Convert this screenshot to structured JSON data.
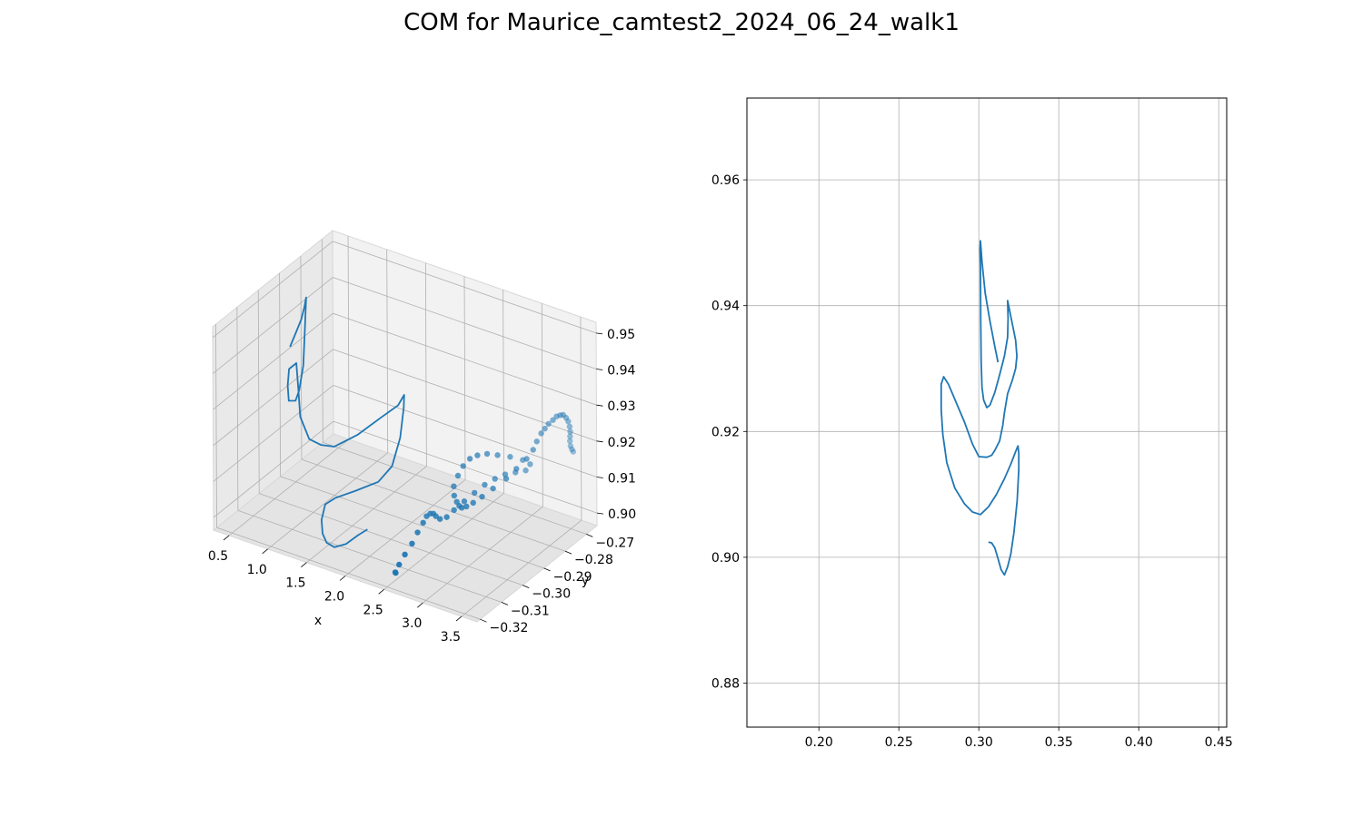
{
  "figure": {
    "title": "COM for Maurice_camtest2_2024_06_24_walk1"
  },
  "colors": {
    "series": "#1f77b4",
    "grid": "#b0b0b0",
    "pane": "#f2f2f2",
    "pane_side": "#e9e9e9",
    "pane_floor": "#e4e4e4"
  },
  "chart_data": [
    {
      "type": "line",
      "projection": "3d",
      "xlabel": "x",
      "ylabel": "y",
      "zlabel": "",
      "grid": true,
      "x_ticks": [
        "0.5",
        "1.0",
        "1.5",
        "2.0",
        "2.5",
        "3.0",
        "3.5"
      ],
      "y_ticks": [
        "−0.32",
        "−0.31",
        "−0.30",
        "−0.29",
        "−0.28",
        "−0.27"
      ],
      "z_ticks": [
        "0.90",
        "0.91",
        "0.92",
        "0.93",
        "0.94",
        "0.95"
      ],
      "series": [
        {
          "marker": "line",
          "points": [
            [
              0.35,
              -0.287,
              0.9315
            ],
            [
              0.45,
              -0.288,
              0.9365
            ],
            [
              0.55,
              -0.289,
              0.9415
            ],
            [
              0.62,
              -0.29,
              0.946
            ],
            [
              0.67,
              -0.291,
              0.9495
            ],
            [
              0.71,
              -0.293,
              0.943
            ],
            [
              0.74,
              -0.295,
              0.933
            ],
            [
              0.74,
              -0.297,
              0.927
            ],
            [
              0.72,
              -0.298,
              0.9245
            ],
            [
              0.66,
              -0.299,
              0.9245
            ],
            [
              0.62,
              -0.298,
              0.928
            ],
            [
              0.61,
              -0.297,
              0.932
            ],
            [
              0.65,
              -0.295,
              0.933
            ],
            [
              0.7,
              -0.296,
              0.927
            ],
            [
              0.78,
              -0.298,
              0.9205
            ],
            [
              0.95,
              -0.3,
              0.9165
            ],
            [
              1.1,
              -0.3,
              0.916
            ],
            [
              1.3,
              -0.301,
              0.9175
            ],
            [
              1.6,
              -0.301,
              0.923
            ],
            [
              1.9,
              -0.301,
              0.93
            ],
            [
              2.1,
              -0.3,
              0.9345
            ],
            [
              2.18,
              -0.3,
              0.938
            ],
            [
              2.2,
              -0.301,
              0.935
            ],
            [
              2.18,
              -0.302,
              0.927
            ],
            [
              2.1,
              -0.303,
              0.919
            ],
            [
              1.95,
              -0.304,
              0.914
            ],
            [
              1.7,
              -0.306,
              0.9105
            ],
            [
              1.5,
              -0.308,
              0.908
            ],
            [
              1.4,
              -0.309,
              0.906
            ],
            [
              1.38,
              -0.31,
              0.902
            ],
            [
              1.42,
              -0.311,
              0.899
            ],
            [
              1.5,
              -0.312,
              0.8975
            ],
            [
              1.6,
              -0.312,
              0.897
            ],
            [
              1.75,
              -0.312,
              0.899
            ],
            [
              1.9,
              -0.312,
              0.9025
            ],
            [
              2.0,
              -0.311,
              0.9045
            ]
          ]
        },
        {
          "marker": "scatter",
          "points": [
            [
              2.5,
              -0.316,
              0.8985
            ],
            [
              2.55,
              -0.318,
              0.9
            ],
            [
              2.6,
              -0.318,
              0.9025
            ],
            [
              2.62,
              -0.316,
              0.9045
            ],
            [
              2.63,
              -0.313,
              0.9062
            ],
            [
              2.62,
              -0.31,
              0.9078
            ],
            [
              2.61,
              -0.307,
              0.909
            ],
            [
              2.6,
              -0.305,
              0.9098
            ],
            [
              2.62,
              -0.304,
              0.9102
            ],
            [
              2.66,
              -0.304,
              0.9105
            ],
            [
              2.72,
              -0.305,
              0.9107
            ],
            [
              2.8,
              -0.306,
              0.911
            ],
            [
              2.86,
              -0.305,
              0.9115
            ],
            [
              2.9,
              -0.303,
              0.9128
            ],
            [
              2.95,
              -0.3,
              0.9142
            ],
            [
              3.0,
              -0.297,
              0.9155
            ],
            [
              3.05,
              -0.294,
              0.9167
            ],
            [
              3.1,
              -0.291,
              0.9173
            ],
            [
              3.15,
              -0.288,
              0.9175
            ],
            [
              3.2,
              -0.285,
              0.917
            ],
            [
              3.25,
              -0.282,
              0.9165
            ],
            [
              3.28,
              -0.281,
              0.918
            ],
            [
              3.24,
              -0.283,
              0.9198
            ],
            [
              3.16,
              -0.286,
              0.9215
            ],
            [
              3.08,
              -0.289,
              0.9228
            ],
            [
              3.0,
              -0.291,
              0.9235
            ],
            [
              2.93,
              -0.293,
              0.9235
            ],
            [
              2.86,
              -0.294,
              0.9225
            ],
            [
              2.8,
              -0.295,
              0.9205
            ],
            [
              2.76,
              -0.296,
              0.918
            ],
            [
              2.76,
              -0.298,
              0.916
            ],
            [
              2.82,
              -0.3,
              0.9148
            ],
            [
              2.88,
              -0.301,
              0.914
            ],
            [
              2.94,
              -0.302,
              0.9138
            ],
            [
              3.0,
              -0.303,
              0.9142
            ],
            [
              3.06,
              -0.303,
              0.915
            ],
            [
              3.12,
              -0.302,
              0.916
            ],
            [
              3.18,
              -0.3,
              0.9172
            ],
            [
              3.24,
              -0.297,
              0.9185
            ],
            [
              3.3,
              -0.293,
              0.9198
            ],
            [
              3.35,
              -0.29,
              0.9215
            ],
            [
              3.4,
              -0.287,
              0.9232
            ],
            [
              3.43,
              -0.285,
              0.925
            ],
            [
              3.45,
              -0.284,
              0.927
            ],
            [
              3.48,
              -0.283,
              0.929
            ],
            [
              3.5,
              -0.282,
              0.93
            ],
            [
              3.52,
              -0.281,
              0.931
            ],
            [
              3.55,
              -0.28,
              0.9318
            ],
            [
              3.57,
              -0.279,
              0.9325
            ],
            [
              3.59,
              -0.278,
              0.9325
            ],
            [
              3.6,
              -0.277,
              0.9322
            ],
            [
              3.61,
              -0.276,
              0.931
            ],
            [
              3.61,
              -0.275,
              0.9295
            ],
            [
              3.6,
              -0.274,
              0.9275
            ],
            [
              3.58,
              -0.273,
              0.9255
            ],
            [
              3.55,
              -0.272,
              0.9235
            ],
            [
              3.52,
              -0.271,
              0.9215
            ],
            [
              3.5,
              -0.27,
              0.9195
            ],
            [
              3.49,
              -0.269,
              0.918
            ],
            [
              3.48,
              -0.268,
              0.9168
            ]
          ]
        }
      ]
    },
    {
      "type": "line",
      "xlabel": "",
      "ylabel": "",
      "grid": true,
      "xlim": [
        0.155,
        0.455
      ],
      "ylim": [
        0.873,
        0.973
      ],
      "x_ticks": [
        0.2,
        0.25,
        0.3,
        0.35,
        0.4,
        0.45
      ],
      "y_ticks": [
        0.88,
        0.9,
        0.92,
        0.94,
        0.96
      ],
      "x_tick_labels": [
        "0.20",
        "0.25",
        "0.30",
        "0.35",
        "0.40",
        "0.45"
      ],
      "y_tick_labels": [
        "0.88",
        "0.90",
        "0.92",
        "0.94",
        "0.96"
      ],
      "series": [
        {
          "x": [
            0.312,
            0.31,
            0.307,
            0.304,
            0.302,
            0.301,
            0.3008,
            0.301,
            0.3012,
            0.3015,
            0.302,
            0.303,
            0.305,
            0.307,
            0.31,
            0.313,
            0.316,
            0.318,
            0.3183,
            0.318,
            0.3188,
            0.321,
            0.323,
            0.3238,
            0.323,
            0.321,
            0.318,
            0.316,
            0.315,
            0.313,
            0.31,
            0.308,
            0.305,
            0.3,
            0.296,
            0.291,
            0.286,
            0.281,
            0.278,
            0.2765,
            0.2765,
            0.2775,
            0.28,
            0.285,
            0.291,
            0.296,
            0.301,
            0.306,
            0.311,
            0.316,
            0.32,
            0.323,
            0.3245,
            0.325,
            0.325,
            0.324,
            0.322,
            0.32,
            0.318,
            0.316,
            0.314,
            0.312,
            0.31,
            0.308,
            0.306
          ],
          "y": [
            0.931,
            0.9335,
            0.9375,
            0.942,
            0.947,
            0.9503,
            0.949,
            0.946,
            0.938,
            0.931,
            0.927,
            0.925,
            0.9238,
            0.9242,
            0.9262,
            0.929,
            0.932,
            0.935,
            0.938,
            0.9408,
            0.9398,
            0.937,
            0.9345,
            0.932,
            0.93,
            0.9282,
            0.926,
            0.923,
            0.921,
            0.9185,
            0.917,
            0.9162,
            0.9159,
            0.916,
            0.918,
            0.9215,
            0.9245,
            0.9275,
            0.9287,
            0.9275,
            0.9235,
            0.9195,
            0.915,
            0.911,
            0.9085,
            0.9072,
            0.9068,
            0.908,
            0.91,
            0.9125,
            0.9148,
            0.9168,
            0.9177,
            0.9165,
            0.914,
            0.909,
            0.904,
            0.9005,
            0.8985,
            0.8972,
            0.898,
            0.8998,
            0.9015,
            0.9023,
            0.9024
          ]
        }
      ]
    }
  ]
}
